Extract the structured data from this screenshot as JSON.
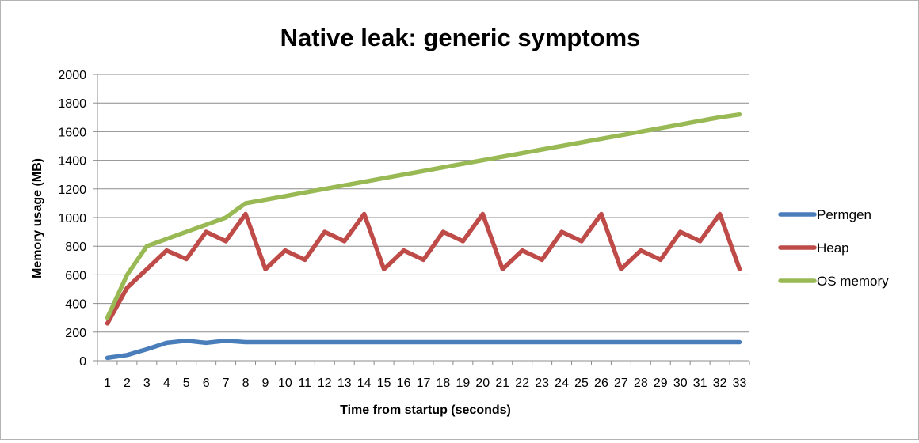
{
  "chart_data": {
    "type": "line",
    "title": "Native leak: generic symptoms",
    "xlabel": "Time from startup (seconds)",
    "ylabel": "Memory usage (MB)",
    "ylim": [
      0,
      2000
    ],
    "yticks": [
      0,
      200,
      400,
      600,
      800,
      1000,
      1200,
      1400,
      1600,
      1800,
      2000
    ],
    "grid": "horizontal",
    "legend": "right",
    "x": [
      1,
      2,
      3,
      4,
      5,
      6,
      7,
      8,
      9,
      10,
      11,
      12,
      13,
      14,
      15,
      16,
      17,
      18,
      19,
      20,
      21,
      22,
      23,
      24,
      25,
      26,
      27,
      28,
      29,
      30,
      31,
      32,
      33
    ],
    "series": [
      {
        "name": "Permgen",
        "color": "#4a7ebb",
        "values": [
          20,
          40,
          80,
          125,
          140,
          125,
          140,
          130,
          130,
          130,
          130,
          130,
          130,
          130,
          130,
          130,
          130,
          130,
          130,
          130,
          130,
          130,
          130,
          130,
          130,
          130,
          130,
          130,
          130,
          130,
          130,
          130,
          130
        ]
      },
      {
        "name": "Heap",
        "color": "#be4b48",
        "values": [
          260,
          510,
          640,
          770,
          710,
          900,
          835,
          1025,
          640,
          770,
          705,
          900,
          835,
          1025,
          640,
          770,
          705,
          900,
          835,
          1025,
          640,
          770,
          705,
          900,
          835,
          1025,
          640,
          770,
          705,
          900,
          835,
          1025,
          640
        ]
      },
      {
        "name": "OS memory",
        "color": "#98b954",
        "values": [
          300,
          600,
          800,
          850,
          900,
          950,
          1000,
          1100,
          1125,
          1150,
          1175,
          1200,
          1225,
          1250,
          1275,
          1300,
          1325,
          1350,
          1375,
          1400,
          1425,
          1450,
          1475,
          1500,
          1525,
          1550,
          1575,
          1600,
          1625,
          1650,
          1675,
          1700,
          1720
        ]
      }
    ]
  }
}
